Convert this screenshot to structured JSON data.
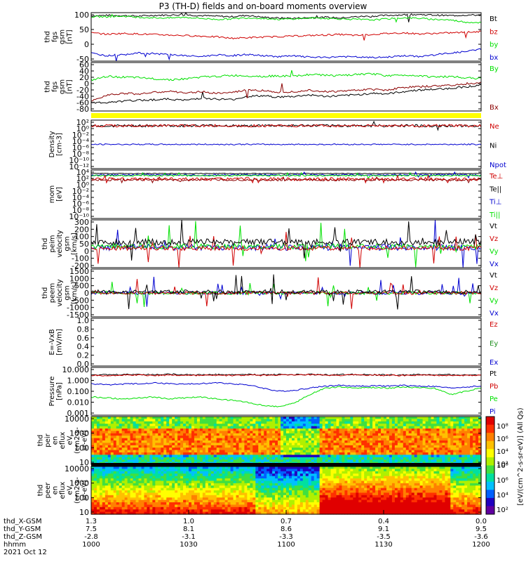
{
  "title": "P3 (TH-D) fields and on-board moments overview",
  "date": "2021 Oct 12",
  "colors": {
    "black": "#000000",
    "red": "#d00000",
    "green": "#00e000",
    "blue": "#0000d0",
    "brown": "#8b0000",
    "yellow": "#ffff00",
    "dark_green": "#209020",
    "magenta": "#a000a0"
  },
  "chart_data": [
    {
      "type": "line",
      "ylabel": [
        "thd",
        "fgs",
        "gsm",
        "[nT]"
      ],
      "yticks": [
        "100",
        "50",
        "0",
        "-50"
      ],
      "ylim": [
        -75,
        105
      ],
      "series": [
        {
          "name": "Bt",
          "color": "#000000",
          "approx": [
            93,
            95,
            94,
            92,
            95,
            96,
            97,
            94,
            92,
            90,
            95,
            88,
            85,
            84,
            86,
            88,
            85,
            90,
            92,
            95,
            97,
            98,
            96,
            94,
            96,
            96
          ]
        },
        {
          "name": "bz",
          "color": "#d00000",
          "approx": [
            30,
            25,
            28,
            26,
            24,
            22,
            20,
            18,
            15,
            10,
            12,
            14,
            16,
            18,
            20,
            22,
            24,
            20,
            24,
            28,
            30,
            26,
            28,
            30,
            32,
            35
          ]
        },
        {
          "name": "by",
          "color": "#00e000",
          "approx": [
            90,
            90,
            92,
            88,
            86,
            85,
            88,
            84,
            80,
            82,
            86,
            84,
            80,
            82,
            85,
            84,
            82,
            80,
            78,
            82,
            86,
            84,
            80,
            78,
            70,
            68
          ]
        },
        {
          "name": "bx",
          "color": "#0000d0",
          "approx": [
            -45,
            -55,
            -50,
            -45,
            -48,
            -50,
            -55,
            -58,
            -52,
            -55,
            -50,
            -55,
            -58,
            -56,
            -60,
            -62,
            -58,
            -60,
            -62,
            -60,
            -55,
            -58,
            -52,
            -45,
            -40,
            -30
          ]
        }
      ]
    },
    {
      "type": "line",
      "ylabel": [
        "thd",
        "fgs",
        "gsm",
        "[nT]"
      ],
      "yticks": [
        "60",
        "40",
        "20",
        "0",
        "-20",
        "-40",
        "-60",
        "-80"
      ],
      "ylim": [
        -85,
        65
      ],
      "series": [
        {
          "name": "By",
          "color": "#00e000",
          "approx": [
            10,
            22,
            20,
            18,
            15,
            12,
            14,
            20,
            22,
            25,
            24,
            22,
            24,
            22,
            28,
            26,
            24,
            28,
            30,
            24,
            26,
            25,
            20,
            22,
            18,
            15
          ]
        },
        {
          "name": "Bx",
          "color": "#8b0000",
          "approx": [
            -55,
            -35,
            -30,
            -32,
            -28,
            -24,
            -30,
            -25,
            -30,
            -28,
            -20,
            -22,
            -26,
            -25,
            -20,
            -25,
            -24,
            -20,
            -18,
            -20,
            -12,
            -10,
            -8,
            -5,
            -2,
            2
          ]
        }
      ]
    },
    {
      "type": "line",
      "ylabel": [
        "Density",
        "[cm-3]"
      ],
      "yticks": [
        "10²",
        "10⁰",
        "10⁻²",
        "10⁻⁴",
        "10⁻⁶",
        "10⁻⁸",
        "10⁻¹⁰",
        "10⁻¹²"
      ],
      "log": true,
      "series": [
        {
          "name": "Ne",
          "color": "#d00000"
        },
        {
          "name": "Ni",
          "color": "#000000"
        },
        {
          "name": "Npot",
          "color": "#0000d0"
        }
      ]
    },
    {
      "type": "line",
      "ylabel": [
        "mom",
        "[eV]"
      ],
      "yticks": [
        "10⁴",
        "10²",
        "10⁰",
        "10⁻²",
        "10⁻⁴",
        "10⁻⁶",
        "10⁻⁸",
        "10⁻¹⁰"
      ],
      "log": true,
      "series": [
        {
          "name": "Te⊥",
          "color": "#d00000"
        },
        {
          "name": "Te||",
          "color": "#000000"
        },
        {
          "name": "Ti⊥",
          "color": "#0000d0"
        },
        {
          "name": "Ti||",
          "color": "#00e000"
        }
      ]
    },
    {
      "type": "line",
      "ylabel": [
        "thd",
        "peim",
        "velocity",
        "gsm",
        "[km/s]"
      ],
      "yticks": [
        "300",
        "200",
        "100",
        "50",
        "0",
        "-100",
        "-200"
      ],
      "series": [
        {
          "name": "Vt",
          "color": "#000000"
        },
        {
          "name": "Vz",
          "color": "#d00000"
        },
        {
          "name": "Vy",
          "color": "#00e000"
        },
        {
          "name": "Vx",
          "color": "#0000d0"
        }
      ]
    },
    {
      "type": "line",
      "ylabel": [
        "thd",
        "peem",
        "velocity",
        "gsm",
        "[km/s]"
      ],
      "yticks": [
        "1500",
        "1000",
        "500",
        "0",
        "-500",
        "-1000",
        "-1500"
      ],
      "series": [
        {
          "name": "Vt",
          "color": "#000000"
        },
        {
          "name": "Vz",
          "color": "#d00000"
        },
        {
          "name": "Vy",
          "color": "#00e000"
        },
        {
          "name": "Vx",
          "color": "#0000d0"
        }
      ]
    },
    {
      "type": "line",
      "ylabel": [
        "E=-VxB",
        "[mV/m]"
      ],
      "yticks": [
        "1.0",
        "0.8",
        "0.6",
        "0.4",
        "0.2",
        "0.0"
      ],
      "series": [
        {
          "name": "Ez",
          "color": "#d00000"
        },
        {
          "name": "Ey",
          "color": "#209020"
        },
        {
          "name": "Ex",
          "color": "#0000d0"
        }
      ]
    },
    {
      "type": "line",
      "ylabel": [
        "Pressure",
        "[nPa]"
      ],
      "yticks": [
        "10.000",
        "1.000",
        "0.100",
        "0.010",
        "0.001"
      ],
      "log": true,
      "series": [
        {
          "name": "Pt",
          "color": "#000000",
          "approx": [
            3.5,
            3.2,
            3.4,
            3.6,
            3.3,
            3.8,
            3.5,
            3.2,
            3.4,
            3.3,
            3.5,
            3.2,
            3.5,
            3.4,
            3.6,
            3.2,
            3.4,
            3.5,
            3.3,
            3.2,
            3.1,
            3.4,
            3.2,
            3.3,
            3.1,
            3.3
          ]
        },
        {
          "name": "Pb",
          "color": "#d00000",
          "approx": [
            3.0,
            2.8,
            3.0,
            3.2,
            2.9,
            3.1,
            3.0,
            2.9,
            3.0,
            2.8,
            3.1,
            2.9,
            3.2,
            3.0,
            3.3,
            2.9,
            3.0,
            3.2,
            3.0,
            2.9,
            2.8,
            3.0,
            2.8,
            3.0,
            2.8,
            3.0
          ]
        },
        {
          "name": "Pe",
          "color": "#00e000",
          "approx": [
            0.03,
            0.025,
            0.02,
            0.025,
            0.03,
            0.02,
            0.025,
            0.03,
            0.02,
            0.015,
            0.01,
            0.005,
            0.004,
            0.008,
            0.05,
            0.2,
            0.25,
            0.2,
            0.22,
            0.2,
            0.25,
            0.22,
            0.2,
            0.05,
            0.1,
            0.2
          ]
        },
        {
          "name": "Pi",
          "color": "#0000d0",
          "approx": [
            0.5,
            0.4,
            0.45,
            0.5,
            0.6,
            0.5,
            0.45,
            0.5,
            0.6,
            0.5,
            0.4,
            0.2,
            0.1,
            0.12,
            0.2,
            0.3,
            0.35,
            0.3,
            0.32,
            0.3,
            0.35,
            0.3,
            0.28,
            0.2,
            0.25,
            0.3
          ]
        }
      ]
    },
    {
      "type": "heatmap",
      "ylabel": [
        "thd",
        "peir",
        "en",
        "eflux",
        "eV",
        "(cm2-s-",
        "sr-eV)"
      ],
      "yticks": [
        "10000",
        "1000",
        "100",
        "10"
      ],
      "log": true
    },
    {
      "type": "heatmap",
      "ylabel": [
        "thd",
        "peer",
        "en",
        "eflux",
        "eV",
        "(cm2-s-",
        "sr-eV)"
      ],
      "yticks": [
        "10000",
        "1000",
        "100",
        "10"
      ],
      "log": true
    }
  ],
  "colorbar": {
    "label": "[eV/(cm^2-s-sr-eV)] (All Qs)",
    "top_ticks": [
      "10⁸",
      "10⁶",
      "10⁴",
      "10²"
    ],
    "bottom_ticks": [
      "10⁸",
      "10⁶",
      "10⁴",
      "10²"
    ]
  },
  "x_axis": {
    "rows": [
      {
        "label": "thd_X-GSM",
        "values": [
          "1.3",
          "1.0",
          "0.7",
          "0.4",
          "0.0"
        ]
      },
      {
        "label": "thd_Y-GSM",
        "values": [
          "7.5",
          "8.1",
          "8.6",
          "9.1",
          "9.5"
        ]
      },
      {
        "label": "thd_Z-GSM",
        "values": [
          "-2.8",
          "-3.1",
          "-3.3",
          "-3.5",
          "-3.6"
        ]
      },
      {
        "label": "hhmm",
        "values": [
          "1000",
          "1030",
          "1100",
          "1130",
          "1200"
        ]
      }
    ]
  }
}
